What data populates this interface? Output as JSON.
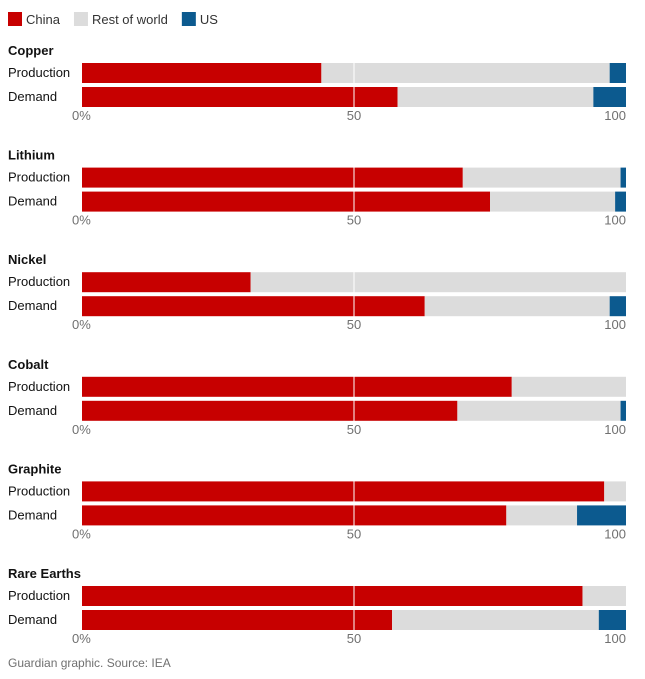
{
  "colors": {
    "China": "#c70000",
    "Rest of world": "#dcdcdc",
    "US": "#0c5a8f",
    "gridline": "#ffffff"
  },
  "footer": {
    "source": "Guardian graphic. Source: IEA"
  },
  "chart_data": {
    "type": "bar",
    "stacked": true,
    "orientation": "horizontal",
    "legend": [
      "China",
      "Rest of world",
      "US"
    ],
    "legend_position": "top-left",
    "xlim": [
      0,
      100
    ],
    "xticks": [
      0,
      50,
      100
    ],
    "xtick_labels": [
      "0%",
      "50",
      "100"
    ],
    "panels": [
      {
        "title": "Copper",
        "rows": [
          {
            "label": "Production",
            "China": 44,
            "Rest of world": 53,
            "US": 3
          },
          {
            "label": "Demand",
            "China": 58,
            "Rest of world": 36,
            "US": 6
          }
        ]
      },
      {
        "title": "Lithium",
        "rows": [
          {
            "label": "Production",
            "China": 70,
            "Rest of world": 29,
            "US": 1
          },
          {
            "label": "Demand",
            "China": 75,
            "Rest of world": 23,
            "US": 2
          }
        ]
      },
      {
        "title": "Nickel",
        "rows": [
          {
            "label": "Production",
            "China": 31,
            "Rest of world": 69,
            "US": 0
          },
          {
            "label": "Demand",
            "China": 63,
            "Rest of world": 34,
            "US": 3
          }
        ]
      },
      {
        "title": "Cobalt",
        "rows": [
          {
            "label": "Production",
            "China": 79,
            "Rest of world": 21,
            "US": 0
          },
          {
            "label": "Demand",
            "China": 69,
            "Rest of world": 30,
            "US": 1
          }
        ]
      },
      {
        "title": "Graphite",
        "rows": [
          {
            "label": "Production",
            "China": 96,
            "Rest of world": 4,
            "US": 0
          },
          {
            "label": "Demand",
            "China": 78,
            "Rest of world": 13,
            "US": 9
          }
        ]
      },
      {
        "title": "Rare Earths",
        "rows": [
          {
            "label": "Production",
            "China": 92,
            "Rest of world": 8,
            "US": 0
          },
          {
            "label": "Demand",
            "China": 57,
            "Rest of world": 38,
            "US": 5
          }
        ]
      }
    ]
  }
}
